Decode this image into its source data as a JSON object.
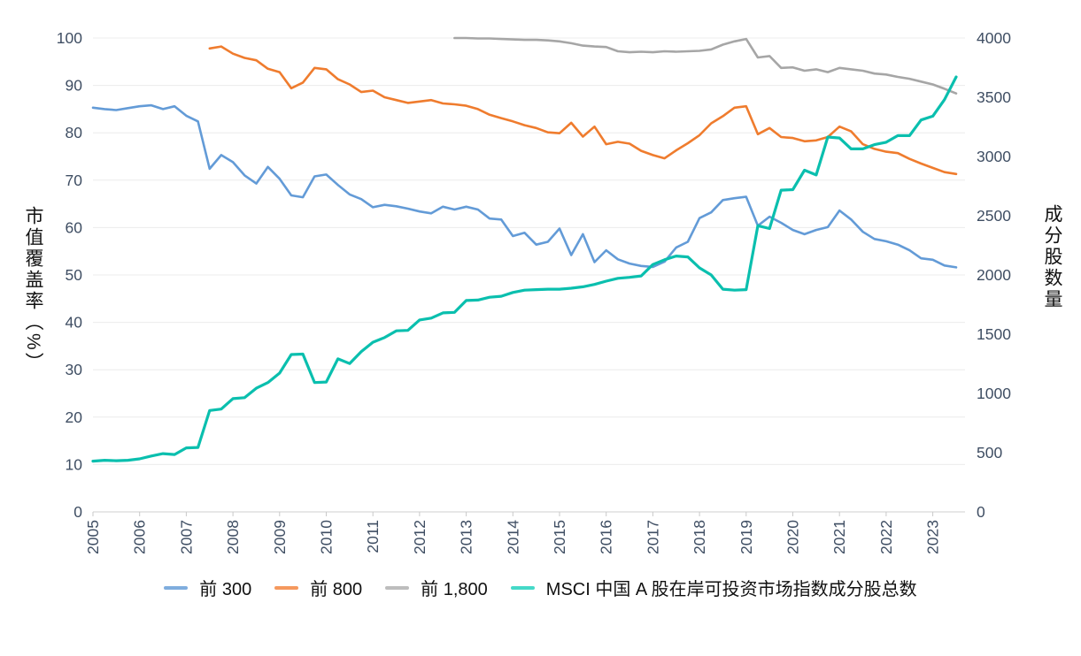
{
  "chart_data": {
    "type": "line",
    "title": "",
    "grid": "horizontal",
    "legend_position": "bottom",
    "left_axis": {
      "label": "市值覆盖率（%）",
      "range": [
        0,
        100
      ],
      "ticks": [
        0,
        10,
        20,
        30,
        40,
        50,
        60,
        70,
        80,
        90,
        100
      ]
    },
    "right_axis": {
      "label": "成分股数量",
      "range": [
        0,
        4000
      ],
      "ticks": [
        0,
        500,
        1000,
        1500,
        2000,
        2500,
        3000,
        3500,
        4000
      ]
    },
    "x_axis": {
      "label": "",
      "range": [
        2005,
        2023.75
      ],
      "ticks": [
        2005,
        2006,
        2007,
        2008,
        2009,
        2010,
        2011,
        2012,
        2013,
        2014,
        2015,
        2016,
        2017,
        2018,
        2019,
        2020,
        2021,
        2022,
        2023
      ]
    },
    "series": [
      {
        "id": "top-300",
        "name": "前 300",
        "axis": "left",
        "color": "#639bd7",
        "legend_color": "#7fadde",
        "width": 2.6,
        "x_start": 2005.0,
        "x_step": 0.25,
        "values": [
          85.3,
          85.0,
          84.8,
          85.2,
          85.6,
          85.8,
          85.0,
          85.6,
          83.6,
          82.4,
          72.4,
          75.3,
          73.8,
          71.0,
          69.3,
          72.8,
          70.3,
          66.8,
          66.4,
          70.8,
          71.2,
          69.0,
          67.0,
          66.0,
          64.3,
          64.8,
          64.5,
          64.0,
          63.4,
          63.0,
          64.4,
          63.8,
          64.4,
          63.8,
          61.9,
          61.7,
          58.2,
          58.9,
          56.4,
          57.0,
          59.8,
          54.2,
          58.6,
          52.7,
          55.2,
          53.3,
          52.4,
          51.9,
          51.7,
          52.8,
          55.8,
          57.0,
          62.0,
          63.2,
          65.8,
          66.2,
          66.5,
          60.4,
          62.3,
          61.0,
          59.5,
          58.6,
          59.5,
          60.1,
          63.6,
          61.7,
          59.1,
          57.6,
          57.1,
          56.4,
          55.2,
          53.5,
          53.2,
          52.0,
          51.6
        ]
      },
      {
        "id": "top-800",
        "name": "前 800",
        "axis": "left",
        "color": "#ef7c2e",
        "legend_color": "#f5995e",
        "width": 2.6,
        "x_start": 2007.5,
        "x_step": 0.25,
        "values": [
          97.8,
          98.2,
          96.7,
          95.8,
          95.3,
          93.5,
          92.8,
          89.4,
          90.6,
          93.7,
          93.4,
          91.3,
          90.2,
          88.6,
          88.9,
          87.5,
          86.9,
          86.3,
          86.6,
          86.9,
          86.2,
          86.0,
          85.7,
          85.0,
          83.8,
          83.1,
          82.4,
          81.6,
          81.0,
          80.1,
          79.9,
          82.1,
          79.2,
          81.3,
          77.6,
          78.1,
          77.7,
          76.2,
          75.3,
          74.6,
          76.3,
          77.8,
          79.5,
          82.0,
          83.5,
          85.3,
          85.6,
          79.7,
          81.0,
          79.1,
          78.9,
          78.2,
          78.4,
          79.1,
          81.3,
          80.3,
          77.6,
          76.6,
          76.0,
          75.7,
          74.5,
          73.5,
          72.6,
          71.7,
          71.3
        ]
      },
      {
        "id": "top-1800",
        "name": "前 1,800",
        "axis": "left",
        "color": "#a6a6a6",
        "legend_color": "#bdbdbd",
        "width": 2.6,
        "x_start": 2012.75,
        "x_step": 0.25,
        "values": [
          100.0,
          100.0,
          99.9,
          99.9,
          99.8,
          99.7,
          99.6,
          99.6,
          99.5,
          99.3,
          98.9,
          98.4,
          98.2,
          98.1,
          97.2,
          97.0,
          97.1,
          97.0,
          97.2,
          97.1,
          97.2,
          97.3,
          97.6,
          98.6,
          99.3,
          99.8,
          95.9,
          96.2,
          93.7,
          93.8,
          93.1,
          93.4,
          92.8,
          93.7,
          93.4,
          93.1,
          92.5,
          92.3,
          91.8,
          91.4,
          90.8,
          90.2,
          89.3,
          88.3
        ]
      },
      {
        "id": "msci-constituent-count",
        "name": "MSCI 中国 A 股在岸可投资市场指数成分股总数",
        "axis": "right",
        "color": "#0abfae",
        "legend_color": "#45d9c8",
        "width": 3.2,
        "x_start": 2005.0,
        "x_step": 0.25,
        "values": [
          428,
          436,
          432,
          436,
          448,
          472,
          492,
          484,
          540,
          544,
          856,
          868,
          956,
          964,
          1044,
          1092,
          1172,
          1328,
          1332,
          1092,
          1096,
          1292,
          1252,
          1352,
          1432,
          1472,
          1528,
          1532,
          1620,
          1636,
          1680,
          1684,
          1784,
          1788,
          1812,
          1820,
          1852,
          1872,
          1876,
          1880,
          1880,
          1888,
          1900,
          1920,
          1948,
          1972,
          1980,
          1992,
          2088,
          2128,
          2160,
          2152,
          2060,
          2000,
          1880,
          1872,
          1876,
          2416,
          2392,
          2716,
          2720,
          2884,
          2844,
          3164,
          3156,
          3064,
          3064,
          3100,
          3120,
          3176,
          3176,
          3308,
          3340,
          3480,
          3672
        ]
      }
    ],
    "colors": {
      "grid": "#ececec",
      "axis_line": "#cfcfcf",
      "tick_label": "#3f4e63"
    }
  }
}
